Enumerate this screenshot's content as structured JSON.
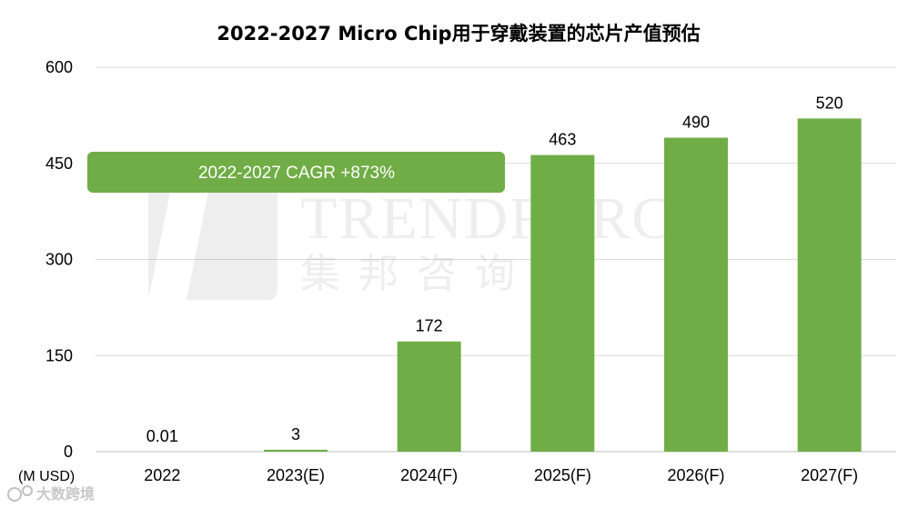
{
  "chart_data": {
    "type": "bar",
    "title": "2022-2027 Micro Chip用于穿戴装置的芯片产值预估",
    "unit_label": "(M USD)",
    "categories": [
      "2022",
      "2023(E)",
      "2024(F)",
      "2025(F)",
      "2026(F)",
      "2027(F)"
    ],
    "values": [
      0.01,
      3,
      172,
      463,
      490,
      520
    ],
    "data_labels": [
      "0.01",
      "3",
      "172",
      "463",
      "490",
      "520"
    ],
    "ylim": [
      0,
      600
    ],
    "yticks": [
      0,
      150,
      300,
      450,
      600
    ],
    "grid": true,
    "bar_color": "#70ad47",
    "annotation": "2022-2027 CAGR +873%"
  },
  "watermark": {
    "text": "TRENDFORCE",
    "subtext": "集邦咨询"
  },
  "corner_logo": {
    "text": "大数跨境"
  }
}
